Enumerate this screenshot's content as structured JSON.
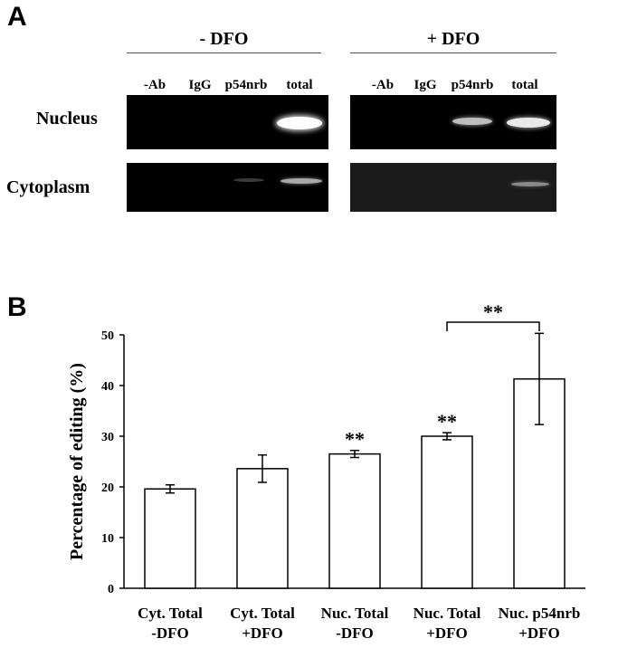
{
  "panelA": {
    "letter": "A",
    "groups": [
      {
        "title": "- DFO",
        "lanes": [
          "-Ab",
          "IgG",
          "p54nrb",
          "total"
        ]
      },
      {
        "title": "+ DFO",
        "lanes": [
          "-Ab",
          "IgG",
          "p54nrb",
          "total"
        ]
      }
    ],
    "rows": [
      "Nucleus",
      "Cytoplasm"
    ]
  },
  "panelB": {
    "letter": "B"
  },
  "chart_data": {
    "type": "bar",
    "categories": [
      "Cyt. Total -DFO",
      "Cyt. Total +DFO",
      "Nuc. Total -DFO",
      "Nuc. Total +DFO",
      "Nuc. p54nrb +DFO"
    ],
    "category_lines": [
      [
        "Cyt. Total",
        "-DFO"
      ],
      [
        "Cyt. Total",
        "+DFO"
      ],
      [
        "Nuc. Total",
        "-DFO"
      ],
      [
        "Nuc. Total",
        "+DFO"
      ],
      [
        "Nuc. p54nrb",
        "+DFO"
      ]
    ],
    "values": [
      19.6,
      23.6,
      26.5,
      30.0,
      41.3
    ],
    "errors": [
      0.8,
      2.7,
      0.7,
      0.7,
      9.0
    ],
    "significance": [
      "",
      "",
      "**",
      "**",
      ""
    ],
    "bracket": {
      "from": 3,
      "to": 4,
      "label": "**"
    },
    "ylabel": "Percentage of editing (%)",
    "xlabel": "",
    "ylim": [
      0,
      50
    ],
    "yticks": [
      0,
      10,
      20,
      30,
      40,
      50
    ],
    "grid": false,
    "bar_fill": "#ffffff",
    "bar_stroke": "#000000"
  }
}
